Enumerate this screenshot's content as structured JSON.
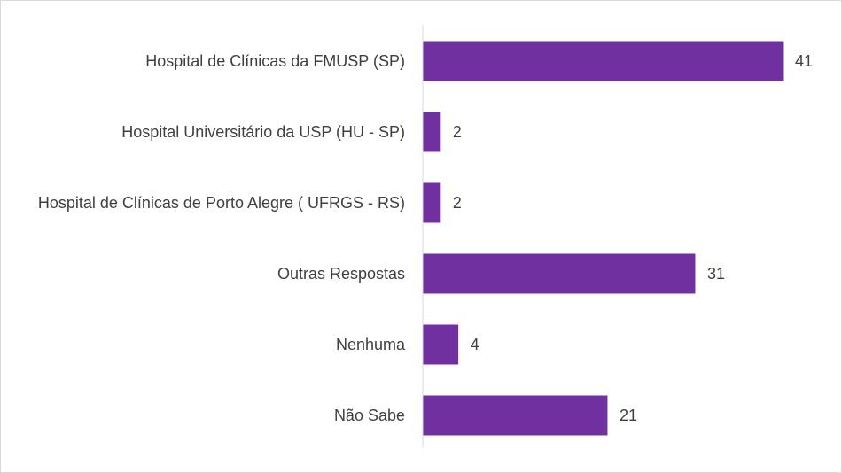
{
  "chart_data": {
    "type": "bar",
    "orientation": "horizontal",
    "categories": [
      "Hospital de Clínicas da FMUSP (SP)",
      "Hospital Universitário da USP (HU - SP)",
      "Hospital de Clínicas de Porto Alegre ( UFRGS - RS)",
      "Outras Respostas",
      "Nenhuma",
      "Não Sabe"
    ],
    "values": [
      41,
      2,
      2,
      31,
      4,
      21
    ],
    "data_labels": [
      "41",
      "2",
      "2",
      "31",
      "4",
      "21"
    ],
    "xlim": [
      0,
      45
    ],
    "grid": false,
    "legend": "none",
    "bar_color": "#7030a0",
    "axis_color": "#d9d9d9",
    "text_color": "#404040"
  }
}
